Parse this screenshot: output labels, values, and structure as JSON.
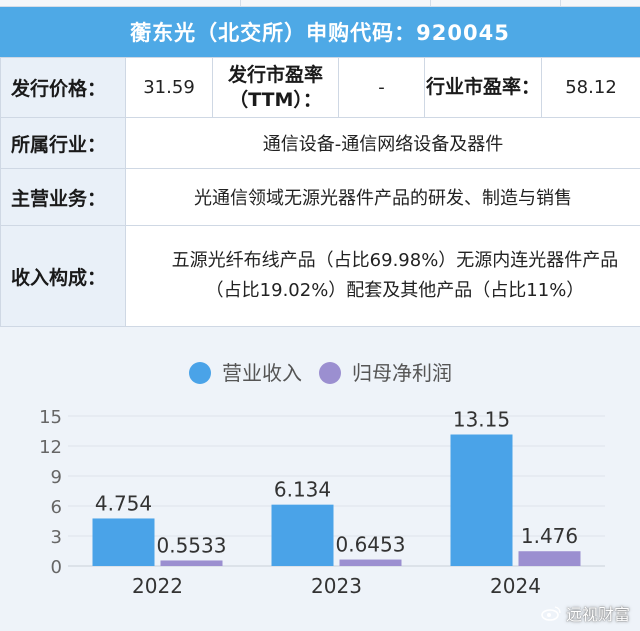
{
  "title": "蘅东光（北交所）申购代码：920045",
  "info": {
    "price_label": "发行价格：",
    "price_value": "31.59",
    "pe_ttm_label": "发行市盈率（TTM）：",
    "pe_ttm_value": "-",
    "industry_pe_label": "行业市盈率：",
    "industry_pe_value": "58.12",
    "industry_label": "所属行业：",
    "industry_value": "通信设备-通信网络设备及器件",
    "business_label": "主营业务：",
    "business_value": "光通信领域无源光器件产品的研发、制造与销售",
    "revenue_label": "收入构成：",
    "revenue_value": "五源光纤布线产品（占比69.98%）无源内连光器件产品（占比19.02%）配套及其他产品（占比11%）"
  },
  "chart_data": {
    "type": "bar",
    "categories": [
      "2022",
      "2023",
      "2024"
    ],
    "series": [
      {
        "name": "营业收入",
        "values": [
          4.754,
          6.134,
          13.15
        ],
        "labels": [
          "4.754",
          "6.134",
          "13.15"
        ],
        "color": "#4aa3e8"
      },
      {
        "name": "归母净利润",
        "values": [
          0.5533,
          0.6453,
          1.476
        ],
        "labels": [
          "0.5533",
          "0.6453",
          "1.476"
        ],
        "color": "#9b8fd0"
      }
    ],
    "yticks": [
      "0",
      "3",
      "6",
      "9",
      "12",
      "15"
    ],
    "ylim": [
      0,
      15
    ],
    "legend": "top",
    "grid": true
  },
  "watermark": "远视财富",
  "colors": {
    "header": "#4ea9e6",
    "label_bg": "#e9f0f8",
    "grid": "#dde3ea"
  }
}
